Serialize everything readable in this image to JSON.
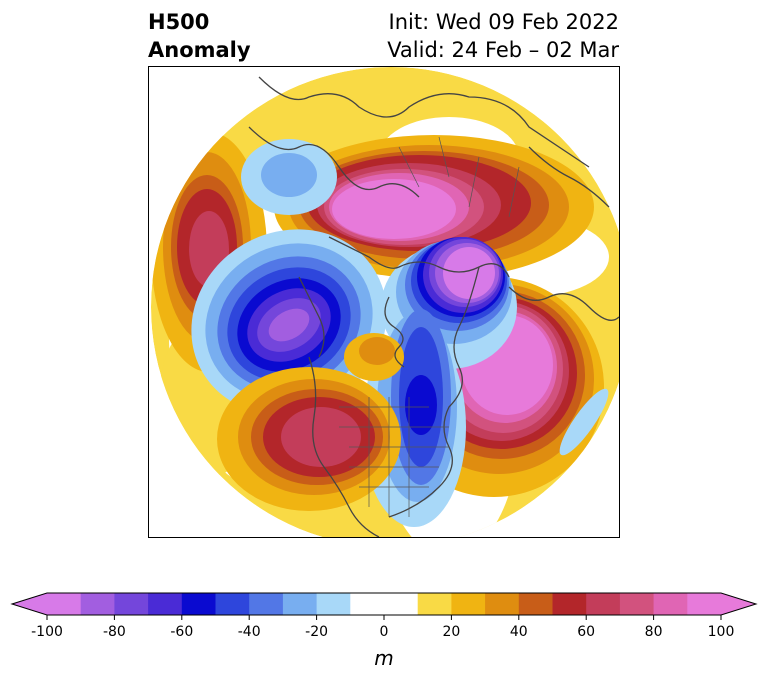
{
  "title": {
    "left_line1": "H500",
    "left_line2": "Anomaly",
    "right_line1": "Init: Wed 09 Feb 2022",
    "right_line2": "Valid: 24 Feb – 02 Mar"
  },
  "colorbar": {
    "unit": "m",
    "tick_labels": [
      "-100",
      "-80",
      "-60",
      "-40",
      "-20",
      "0",
      "20",
      "40",
      "60",
      "80",
      "100"
    ],
    "colors": [
      "#d77ae8",
      "#a25ee0",
      "#7446db",
      "#4a2bd6",
      "#0a0ad0",
      "#2e46dc",
      "#5277e6",
      "#78aef0",
      "#a8d8f8",
      "#ffffff",
      "#ffffff",
      "#f9da45",
      "#f0b412",
      "#df8d10",
      "#c85d18",
      "#b3262a",
      "#c33d5a",
      "#d2527e",
      "#e065b4",
      "#e77ada"
    ],
    "extend_low_color": "#d77ae8",
    "extend_high_color": "#e77ada"
  },
  "map": {
    "projection": "north-polar-stereographic",
    "field": "500 hPa geopotential height anomaly"
  }
}
